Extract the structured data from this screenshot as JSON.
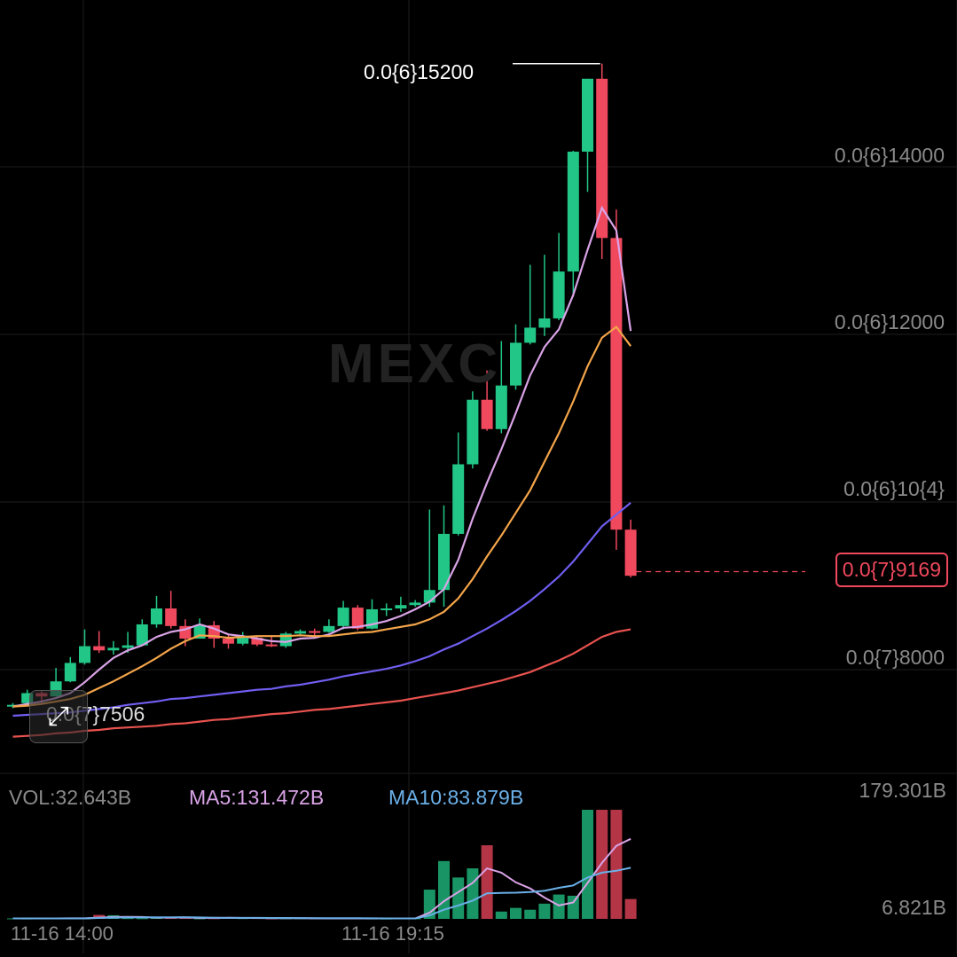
{
  "watermark": "MEXC",
  "price_axis": {
    "ticks": [
      {
        "label": "0.0{6}14000",
        "value": 14000
      },
      {
        "label": "0.0{6}12000",
        "value": 12000
      },
      {
        "label": "0.0{6}10{4}",
        "value": 10000
      },
      {
        "label": "0.0{7}8000",
        "value": 8000
      }
    ],
    "high_label": "0.0{6}15200",
    "low_label": "0.0{7}7506",
    "current_label": "0.0{7}9169",
    "current_value": 9169
  },
  "volume_legend": {
    "vol": "VOL:32.643B",
    "ma5": "MA5:131.472B",
    "ma10": "MA10:83.879B",
    "max_label": "179.301B",
    "min_label": "6.821B"
  },
  "time_axis": [
    "11-16 14:00",
    "11-16 19:15"
  ],
  "colors": {
    "up": "#22c787",
    "down": "#f0485d",
    "ma5": "#d9a3e6",
    "ma10": "#f4a54a",
    "ma30": "#6f5ef0",
    "ma60": "#e8524f",
    "vol_ma5": "#d9a3e6",
    "vol_ma10": "#6bb0e8"
  },
  "chart_data": {
    "type": "candlestick",
    "price_unit_note": "0.0{6}N means 0.000000N",
    "candles": [
      [
        7560,
        7580,
        7540,
        7600
      ],
      [
        7600,
        7720,
        7590,
        7760
      ],
      [
        7720,
        7680,
        7600,
        7740
      ],
      [
        7680,
        7860,
        7680,
        8020
      ],
      [
        7860,
        8080,
        7850,
        8150
      ],
      [
        8080,
        8280,
        8060,
        8480
      ],
      [
        8280,
        8230,
        8200,
        8460
      ],
      [
        8230,
        8260,
        8180,
        8340
      ],
      [
        8260,
        8290,
        8200,
        8450
      ],
      [
        8290,
        8540,
        8290,
        8600
      ],
      [
        8540,
        8730,
        8500,
        8880
      ],
      [
        8730,
        8520,
        8490,
        8940
      ],
      [
        8520,
        8370,
        8280,
        8600
      ],
      [
        8370,
        8530,
        8370,
        8610
      ],
      [
        8530,
        8370,
        8260,
        8580
      ],
      [
        8370,
        8310,
        8250,
        8420
      ],
      [
        8310,
        8380,
        8290,
        8450
      ],
      [
        8380,
        8300,
        8280,
        8400
      ],
      [
        8300,
        8280,
        8270,
        8400
      ],
      [
        8280,
        8430,
        8260,
        8450
      ],
      [
        8430,
        8460,
        8400,
        8480
      ],
      [
        8460,
        8450,
        8400,
        8490
      ],
      [
        8450,
        8520,
        8440,
        8600
      ],
      [
        8520,
        8740,
        8480,
        8820
      ],
      [
        8740,
        8490,
        8470,
        8770
      ],
      [
        8490,
        8720,
        8480,
        8840
      ],
      [
        8720,
        8730,
        8640,
        8790
      ],
      [
        8730,
        8770,
        8690,
        8870
      ],
      [
        8770,
        8800,
        8750,
        8830
      ],
      [
        8800,
        8950,
        8750,
        9910
      ],
      [
        8950,
        9620,
        8750,
        9960
      ],
      [
        9620,
        10450,
        9600,
        10830
      ],
      [
        10450,
        11220,
        10400,
        11320
      ],
      [
        11220,
        10870,
        10850,
        11570
      ],
      [
        10870,
        11390,
        10820,
        11920
      ],
      [
        11390,
        11900,
        11340,
        12120
      ],
      [
        11900,
        12080,
        11880,
        12830
      ],
      [
        12080,
        12190,
        11980,
        12950
      ],
      [
        12190,
        12750,
        12170,
        13210
      ],
      [
        12750,
        14180,
        12450,
        14190
      ],
      [
        14180,
        15050,
        13700,
        15050
      ],
      [
        15050,
        13150,
        12900,
        15230
      ],
      [
        13150,
        9670,
        9430,
        13490
      ],
      [
        9670,
        9120,
        9100,
        9790
      ]
    ],
    "ma_series": [
      {
        "name": "MA5",
        "values": [
          7560,
          7590,
          7620,
          7660,
          7720,
          7850,
          8000,
          8140,
          8230,
          8290,
          8390,
          8450,
          8480,
          8540,
          8490,
          8420,
          8400,
          8370,
          8340,
          8330,
          8370,
          8380,
          8420,
          8500,
          8510,
          8540,
          8580,
          8640,
          8720,
          8810,
          8960,
          9310,
          9800,
          10230,
          10630,
          11060,
          11510,
          11850,
          12060,
          12470,
          13010,
          13510,
          13240,
          12040
        ]
      },
      {
        "name": "MA10",
        "values": [
          7560,
          7570,
          7590,
          7620,
          7650,
          7700,
          7780,
          7860,
          7950,
          8040,
          8140,
          8250,
          8340,
          8410,
          8400,
          8380,
          8390,
          8400,
          8400,
          8400,
          8410,
          8400,
          8400,
          8420,
          8440,
          8450,
          8480,
          8510,
          8540,
          8600,
          8690,
          8850,
          9080,
          9350,
          9600,
          9870,
          10140,
          10480,
          10820,
          11200,
          11620,
          11960,
          12090,
          11860
        ]
      },
      {
        "name": "MA30",
        "values": [
          7450,
          7460,
          7470,
          7480,
          7490,
          7510,
          7530,
          7550,
          7580,
          7600,
          7620,
          7650,
          7660,
          7680,
          7700,
          7720,
          7740,
          7760,
          7770,
          7800,
          7820,
          7850,
          7880,
          7920,
          7950,
          7980,
          8010,
          8050,
          8100,
          8160,
          8240,
          8310,
          8400,
          8490,
          8590,
          8700,
          8820,
          8960,
          9110,
          9290,
          9500,
          9710,
          9850,
          9990
        ]
      },
      {
        "name": "MA60",
        "values": [
          7200,
          7210,
          7220,
          7240,
          7250,
          7270,
          7280,
          7300,
          7310,
          7320,
          7330,
          7350,
          7360,
          7380,
          7400,
          7410,
          7430,
          7450,
          7470,
          7480,
          7500,
          7520,
          7530,
          7550,
          7570,
          7590,
          7610,
          7630,
          7660,
          7690,
          7720,
          7750,
          7790,
          7830,
          7870,
          7920,
          7970,
          8040,
          8110,
          8190,
          8290,
          8390,
          8450,
          8480
        ]
      }
    ],
    "volume": [
      0.8,
      0.6,
      0.7,
      0.9,
      1.0,
      0.8,
      6.5,
      6.0,
      1.2,
      1.0,
      1.5,
      2.0,
      2.2,
      0.8,
      1.0,
      1.5,
      1.2,
      1.3,
      0.8,
      0.9,
      1.0,
      0.7,
      0.8,
      1.0,
      0.9,
      0.6,
      0.5,
      0.8,
      0.9,
      48.0,
      95.0,
      68.0,
      83.0,
      121.0,
      12.0,
      18.0,
      15.0,
      25.0,
      40.0,
      38.0,
      179.3,
      179.3,
      179.3,
      32.6
    ],
    "volume_ma5": [
      0.8,
      0.8,
      0.8,
      0.8,
      0.9,
      0.9,
      2.0,
      3.0,
      3.2,
      3.0,
      2.1,
      2.2,
      2.3,
      1.5,
      1.6,
      1.8,
      1.5,
      1.4,
      1.2,
      1.1,
      1.0,
      0.9,
      0.8,
      0.8,
      0.8,
      0.8,
      0.7,
      0.7,
      0.7,
      10.1,
      29.0,
      44.0,
      59.0,
      83.0,
      76.0,
      60.0,
      50.0,
      35.0,
      22.0,
      27.0,
      59.0,
      92.0,
      120.0,
      131.5
    ],
    "volume_ma10": [
      0.8,
      0.8,
      0.8,
      0.8,
      0.8,
      0.8,
      1.5,
      2.0,
      2.3,
      2.4,
      2.5,
      2.6,
      2.7,
      2.4,
      1.9,
      1.6,
      1.6,
      1.6,
      1.5,
      1.4,
      1.3,
      1.2,
      1.1,
      1.0,
      1.0,
      0.9,
      0.8,
      0.8,
      0.8,
      5.5,
      15.0,
      22.0,
      30.0,
      42.0,
      42.5,
      43.0,
      44.0,
      46.0,
      51.0,
      55.0,
      68.0,
      76.0,
      79.0,
      83.9
    ]
  }
}
